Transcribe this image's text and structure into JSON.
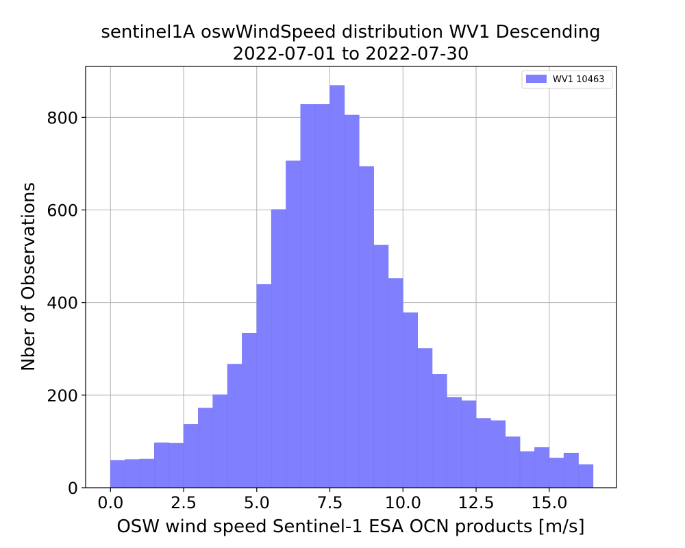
{
  "chart_data": {
    "type": "bar",
    "title_line1": "sentinel1A oswWindSpeed distribution WV1 Descending",
    "title_line2": "2022-07-01 to 2022-07-30",
    "xlabel": "OSW wind speed Sentinel-1 ESA OCN products [m/s]",
    "ylabel": "Nber of Observations",
    "xlim": [
      -0.85,
      17.3
    ],
    "ylim": [
      0,
      910
    ],
    "xticks": [
      0.0,
      2.5,
      5.0,
      7.5,
      10.0,
      12.5,
      15.0
    ],
    "xtick_labels": [
      "0.0",
      "2.5",
      "5.0",
      "7.5",
      "10.0",
      "12.5",
      "15.0"
    ],
    "yticks": [
      0,
      200,
      400,
      600,
      800
    ],
    "ytick_labels": [
      "0",
      "200",
      "400",
      "600",
      "800"
    ],
    "grid": true,
    "legend_position": "top-right",
    "color": "#8080ff",
    "edge_color": "#7777ee",
    "series": [
      {
        "name": "WV1 10463",
        "bin_width": 0.5,
        "bin_starts": [
          0.0,
          0.5,
          1.0,
          1.5,
          2.0,
          2.5,
          3.0,
          3.5,
          4.0,
          4.5,
          5.0,
          5.5,
          6.0,
          6.5,
          7.0,
          7.5,
          8.0,
          8.5,
          9.0,
          9.5,
          10.0,
          10.5,
          11.0,
          11.5,
          12.0,
          12.5,
          13.0,
          13.5,
          14.0,
          14.5,
          15.0,
          15.5,
          16.0
        ],
        "values": [
          59,
          61,
          62,
          97,
          96,
          137,
          172,
          201,
          267,
          334,
          439,
          601,
          706,
          828,
          828,
          869,
          805,
          694,
          524,
          452,
          378,
          301,
          245,
          195,
          188,
          150,
          145,
          110,
          78,
          87,
          64,
          75,
          50
        ]
      }
    ]
  }
}
